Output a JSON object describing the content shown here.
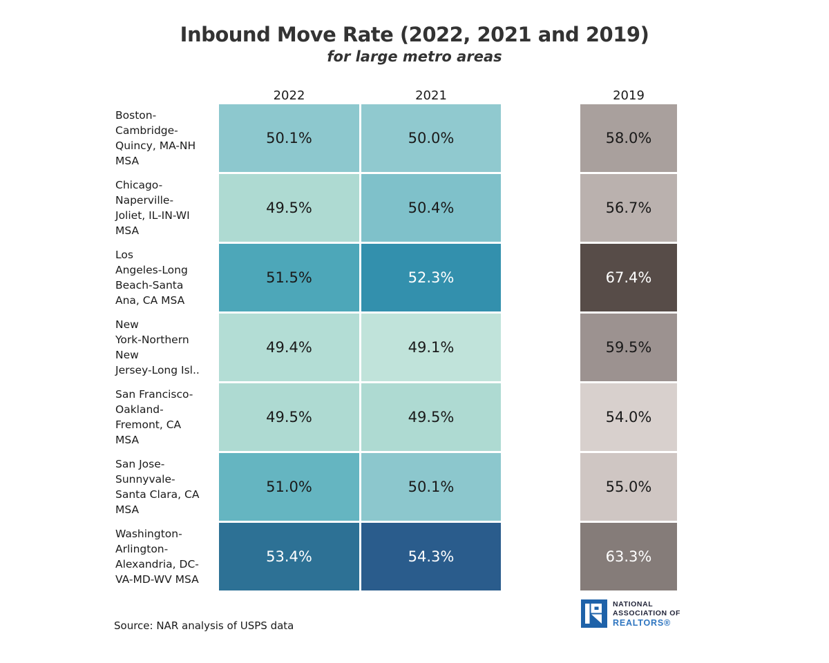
{
  "chart_data": {
    "type": "heatmap",
    "title": "Inbound Move Rate (2022, 2021 and 2019)",
    "subtitle": "for large metro areas",
    "columns": [
      "2022",
      "2021",
      "2019"
    ],
    "unit": "%",
    "legend": "none",
    "layout_hint": "7 metro rows x 3 year columns; 2019 column separated to the right and narrower; teal-blue scale for 2022/2021, warm gray-brown scale for 2019",
    "rows": [
      {
        "metro": "Boston-Cambridge-Quincy, MA-NH MSA",
        "label_lines": [
          "Boston-",
          "Cambridge-",
          "Quincy, MA-NH",
          "MSA"
        ],
        "values": [
          50.1,
          50.0,
          58.0
        ],
        "display": [
          "50.1%",
          "50.0%",
          "58.0%"
        ],
        "cell_colors": [
          "#8dc8ce",
          "#90c9cf",
          "#a9a09d"
        ],
        "text_colors": [
          "#1a1a1a",
          "#1a1a1a",
          "#1a1a1a"
        ]
      },
      {
        "metro": "Chicago-Naperville-Joliet, IL-IN-WI MSA",
        "label_lines": [
          "Chicago-",
          "Naperville-",
          "Joliet, IL-IN-WI",
          "MSA"
        ],
        "values": [
          49.5,
          50.4,
          56.7
        ],
        "display": [
          "49.5%",
          "50.4%",
          "56.7%"
        ],
        "cell_colors": [
          "#aedad2",
          "#7fc1ca",
          "#bab1ae"
        ],
        "text_colors": [
          "#1a1a1a",
          "#1a1a1a",
          "#1a1a1a"
        ]
      },
      {
        "metro": "Los Angeles-Long Beach-Santa Ana, CA MSA",
        "label_lines": [
          "Los",
          "Angeles-Long",
          "Beach-Santa",
          "Ana, CA MSA"
        ],
        "values": [
          51.5,
          52.3,
          67.4
        ],
        "display": [
          "51.5%",
          "52.3%",
          "67.4%"
        ],
        "cell_colors": [
          "#4da7b9",
          "#3390ad",
          "#574c48"
        ],
        "text_colors": [
          "#1a1a1a",
          "#ffffff",
          "#ffffff"
        ]
      },
      {
        "metro": "New York-Northern New Jersey-Long Isl..",
        "label_lines": [
          "New",
          "York-Northern",
          "New",
          "Jersey-Long Isl.."
        ],
        "values": [
          49.4,
          49.1,
          59.5
        ],
        "display": [
          "49.4%",
          "49.1%",
          "59.5%"
        ],
        "cell_colors": [
          "#b3ddd5",
          "#c0e3da",
          "#9c9290"
        ],
        "text_colors": [
          "#1a1a1a",
          "#1a1a1a",
          "#1a1a1a"
        ]
      },
      {
        "metro": "San Francisco-Oakland-Fremont, CA MSA",
        "label_lines": [
          "San Francisco-",
          "Oakland-",
          "Fremont, CA",
          "MSA"
        ],
        "values": [
          49.5,
          49.5,
          54.0
        ],
        "display": [
          "49.5%",
          "49.5%",
          "54.0%"
        ],
        "cell_colors": [
          "#aedad2",
          "#aedad2",
          "#d8d0cd"
        ],
        "text_colors": [
          "#1a1a1a",
          "#1a1a1a",
          "#1a1a1a"
        ]
      },
      {
        "metro": "San Jose-Sunnyvale-Santa Clara, CA MSA",
        "label_lines": [
          "San Jose-",
          "Sunnyvale-",
          "Santa Clara, CA",
          "MSA"
        ],
        "values": [
          51.0,
          50.1,
          55.0
        ],
        "display": [
          "51.0%",
          "50.1%",
          "55.0%"
        ],
        "cell_colors": [
          "#65b5c1",
          "#8cc7cd",
          "#cfc6c3"
        ],
        "text_colors": [
          "#1a1a1a",
          "#1a1a1a",
          "#1a1a1a"
        ]
      },
      {
        "metro": "Washington-Arlington-Alexandria, DC-VA-MD-WV MSA",
        "label_lines": [
          "Washington-",
          "Arlington-",
          "Alexandria, DC-",
          "VA-MD-WV MSA"
        ],
        "values": [
          53.4,
          54.3,
          63.3
        ],
        "display": [
          "53.4%",
          "54.3%",
          "63.3%"
        ],
        "cell_colors": [
          "#2d7195",
          "#2a5c8c",
          "#857c79"
        ],
        "text_colors": [
          "#ffffff",
          "#ffffff",
          "#ffffff"
        ]
      }
    ]
  },
  "source": {
    "label": "Source: NAR analysis of USPS data"
  },
  "logo": {
    "alt": "National Association of Realtors",
    "line1": "NATIONAL",
    "line2": "ASSOCIATION OF",
    "line3": "REALTORS®"
  },
  "palette": {
    "background": "#ffffff",
    "title_text": "#333333",
    "cell_text_dark": "#1a1a1a",
    "cell_text_light": "#ffffff",
    "logo_blue": "#1e62a9",
    "logo_dark_text": "#23263a",
    "logo_realtors_blue": "#2e75c0"
  }
}
